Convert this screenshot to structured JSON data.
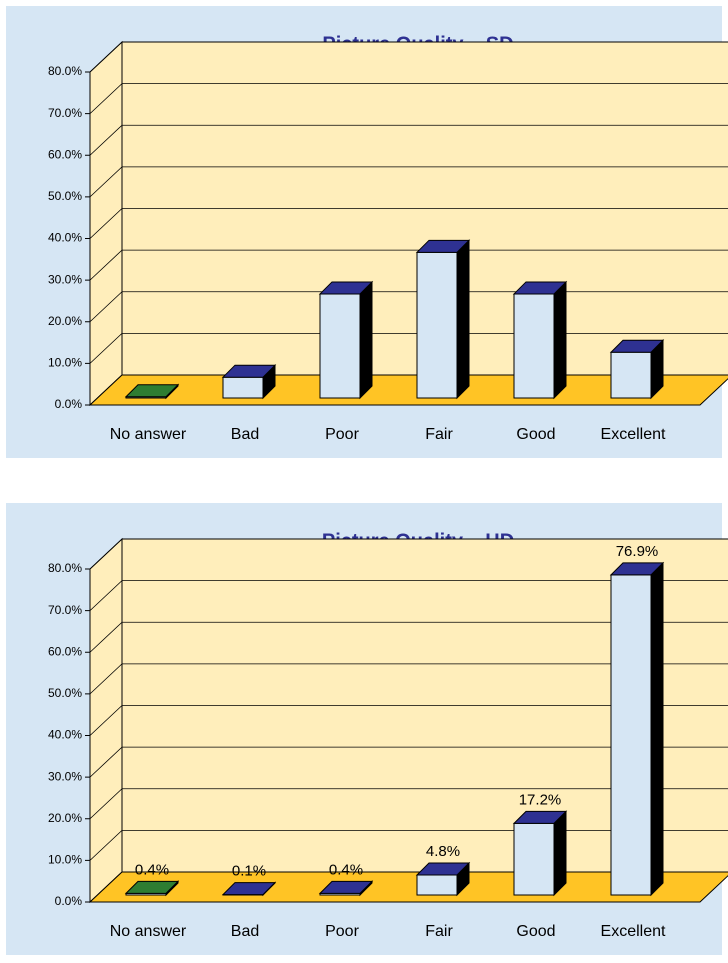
{
  "chart_data": [
    {
      "type": "bar3d",
      "title": "Picture Quality – SD",
      "categories": [
        "No answer",
        "Bad",
        "Poor",
        "Fair",
        "Good",
        "Excellent"
      ],
      "values": [
        0.3,
        5,
        25,
        35,
        25,
        11
      ],
      "colors": [
        "#2e7d32",
        "#2e3192",
        "#2e3192",
        "#2e3192",
        "#2e3192",
        "#2e3192"
      ],
      "ylim": [
        0,
        80
      ],
      "yticks": [
        {
          "value": 0,
          "label": "0.0%"
        },
        {
          "value": 10,
          "label": "10.0%"
        },
        {
          "value": 20,
          "label": "20.0%"
        },
        {
          "value": 30,
          "label": "30.0%"
        },
        {
          "value": 40,
          "label": "40.0%"
        },
        {
          "value": 50,
          "label": "50.0%"
        },
        {
          "value": 60,
          "label": "60.0%"
        },
        {
          "value": 70,
          "label": "70.0%"
        },
        {
          "value": 80,
          "label": "80.0%"
        }
      ],
      "grid": true
    },
    {
      "type": "bar3d",
      "title": "Picture Quality – HD",
      "categories": [
        "No answer",
        "Bad",
        "Poor",
        "Fair",
        "Good",
        "Excellent"
      ],
      "values": [
        0.4,
        0.1,
        0.4,
        4.8,
        17.2,
        76.9
      ],
      "value_labels": [
        "0.4%",
        "0.1%",
        "0.4%",
        "4.8%",
        "17.2%",
        "76.9%"
      ],
      "colors": [
        "#2e7d32",
        "#2e3192",
        "#2e3192",
        "#2e3192",
        "#2e3192",
        "#2e3192"
      ],
      "ylim": [
        0,
        80
      ],
      "yticks": [
        {
          "value": 0,
          "label": "0.0%"
        },
        {
          "value": 10,
          "label": "10.0%"
        },
        {
          "value": 20,
          "label": "20.0%"
        },
        {
          "value": 30,
          "label": "30.0%"
        },
        {
          "value": 40,
          "label": "40.0%"
        },
        {
          "value": 50,
          "label": "50.0%"
        },
        {
          "value": 60,
          "label": "60.0%"
        },
        {
          "value": 70,
          "label": "70.0%"
        },
        {
          "value": 80,
          "label": "80.0%"
        }
      ],
      "grid": true
    }
  ]
}
